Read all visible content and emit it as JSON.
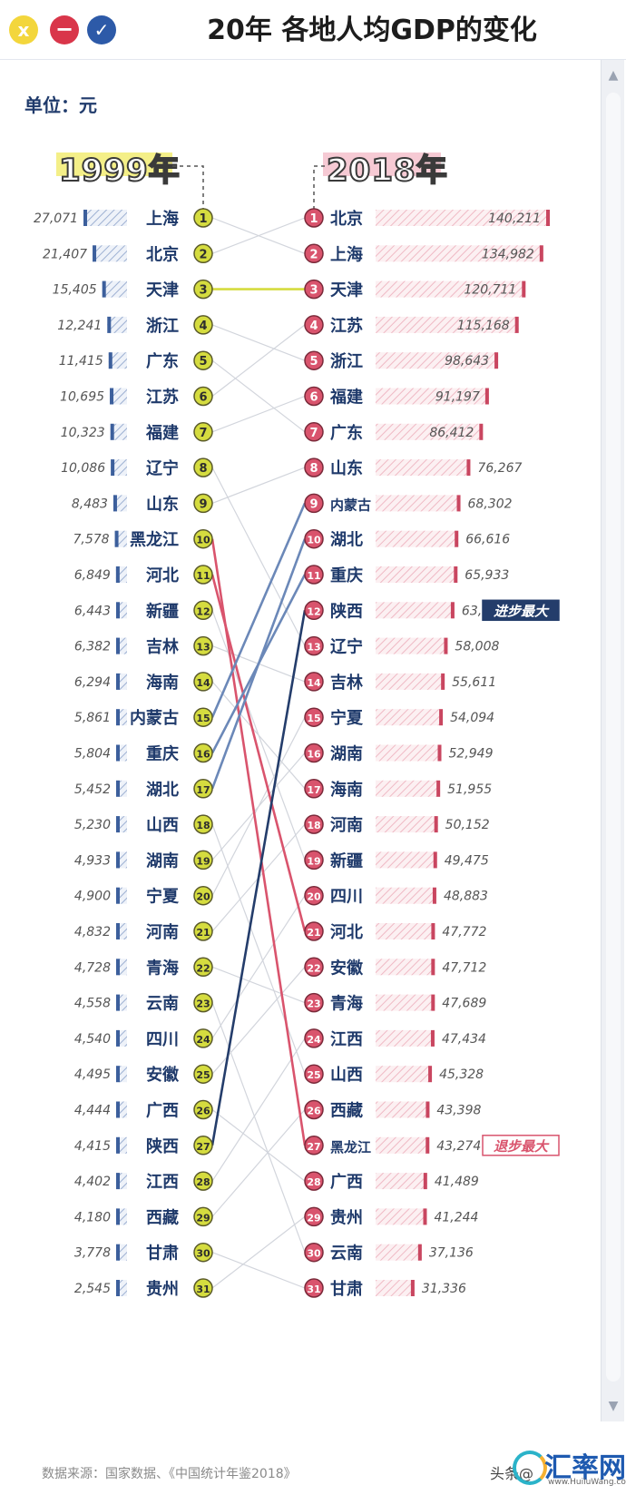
{
  "window": {
    "title": "20年 各地人均GDP的变化",
    "buttons": {
      "close_icon": "x",
      "minimize_icon": "−",
      "confirm_icon": "✓"
    }
  },
  "unit_label": "单位：元",
  "source_text": "数据来源：国家数据、《中国统计年鉴2018》",
  "watermark": {
    "toutiao": "头条@",
    "brand": "汇率网",
    "url": "www.HuiluWang.com"
  },
  "colors": {
    "yellow": "#d5dc3f",
    "pink": "#d9546d",
    "navy": "#243d6b",
    "steel": "#6b88b8",
    "connector_gray": "#d2d5dc"
  },
  "chart_data": {
    "type": "slope",
    "unit": "元",
    "left": {
      "year_label": "1999年",
      "items": [
        {
          "rank": "1",
          "region": "上海",
          "value": "27,071",
          "v": 27071
        },
        {
          "rank": "2",
          "region": "北京",
          "value": "21,407",
          "v": 21407
        },
        {
          "rank": "3",
          "region": "天津",
          "value": "15,405",
          "v": 15405
        },
        {
          "rank": "4",
          "region": "浙江",
          "value": "12,241",
          "v": 12241
        },
        {
          "rank": "5",
          "region": "广东",
          "value": "11,415",
          "v": 11415
        },
        {
          "rank": "6",
          "region": "江苏",
          "value": "10,695",
          "v": 10695
        },
        {
          "rank": "7",
          "region": "福建",
          "value": "10,323",
          "v": 10323
        },
        {
          "rank": "8",
          "region": "辽宁",
          "value": "10,086",
          "v": 10086
        },
        {
          "rank": "9",
          "region": "山东",
          "value": "8,483",
          "v": 8483
        },
        {
          "rank": "10",
          "region": "黑龙江",
          "value": "7,578",
          "v": 7578
        },
        {
          "rank": "11",
          "region": "河北",
          "value": "6,849",
          "v": 6849
        },
        {
          "rank": "12",
          "region": "新疆",
          "value": "6,443",
          "v": 6443
        },
        {
          "rank": "13",
          "region": "吉林",
          "value": "6,382",
          "v": 6382
        },
        {
          "rank": "14",
          "region": "海南",
          "value": "6,294",
          "v": 6294
        },
        {
          "rank": "15",
          "region": "内蒙古",
          "value": "5,861",
          "v": 5861
        },
        {
          "rank": "16",
          "region": "重庆",
          "value": "5,804",
          "v": 5804
        },
        {
          "rank": "17",
          "region": "湖北",
          "value": "5,452",
          "v": 5452
        },
        {
          "rank": "18",
          "region": "山西",
          "value": "5,230",
          "v": 5230
        },
        {
          "rank": "19",
          "region": "湖南",
          "value": "4,933",
          "v": 4933
        },
        {
          "rank": "20",
          "region": "宁夏",
          "value": "4,900",
          "v": 4900
        },
        {
          "rank": "21",
          "region": "河南",
          "value": "4,832",
          "v": 4832
        },
        {
          "rank": "22",
          "region": "青海",
          "value": "4,728",
          "v": 4728
        },
        {
          "rank": "23",
          "region": "云南",
          "value": "4,558",
          "v": 4558
        },
        {
          "rank": "24",
          "region": "四川",
          "value": "4,540",
          "v": 4540
        },
        {
          "rank": "25",
          "region": "安徽",
          "value": "4,495",
          "v": 4495
        },
        {
          "rank": "26",
          "region": "广西",
          "value": "4,444",
          "v": 4444
        },
        {
          "rank": "27",
          "region": "陕西",
          "value": "4,415",
          "v": 4415
        },
        {
          "rank": "28",
          "region": "江西",
          "value": "4,402",
          "v": 4402
        },
        {
          "rank": "29",
          "region": "西藏",
          "value": "4,180",
          "v": 4180
        },
        {
          "rank": "30",
          "region": "甘肃",
          "value": "3,778",
          "v": 3778
        },
        {
          "rank": "31",
          "region": "贵州",
          "value": "2,545",
          "v": 2545
        }
      ]
    },
    "right": {
      "year_label": "2018年",
      "items": [
        {
          "rank": "1",
          "region": "北京",
          "value": "140,211",
          "v": 140211
        },
        {
          "rank": "2",
          "region": "上海",
          "value": "134,982",
          "v": 134982
        },
        {
          "rank": "3",
          "region": "天津",
          "value": "120,711",
          "v": 120711
        },
        {
          "rank": "4",
          "region": "江苏",
          "value": "115,168",
          "v": 115168
        },
        {
          "rank": "5",
          "region": "浙江",
          "value": "98,643",
          "v": 98643
        },
        {
          "rank": "6",
          "region": "福建",
          "value": "91,197",
          "v": 91197
        },
        {
          "rank": "7",
          "region": "广东",
          "value": "86,412",
          "v": 86412
        },
        {
          "rank": "8",
          "region": "山东",
          "value": "76,267",
          "v": 76267
        },
        {
          "rank": "9",
          "region": "内蒙古",
          "value": "68,302",
          "v": 68302
        },
        {
          "rank": "10",
          "region": "湖北",
          "value": "66,616",
          "v": 66616
        },
        {
          "rank": "11",
          "region": "重庆",
          "value": "65,933",
          "v": 65933
        },
        {
          "rank": "12",
          "region": "陕西",
          "value": "63,477",
          "v": 63477
        },
        {
          "rank": "13",
          "region": "辽宁",
          "value": "58,008",
          "v": 58008
        },
        {
          "rank": "14",
          "region": "吉林",
          "value": "55,611",
          "v": 55611
        },
        {
          "rank": "15",
          "region": "宁夏",
          "value": "54,094",
          "v": 54094
        },
        {
          "rank": "16",
          "region": "湖南",
          "value": "52,949",
          "v": 52949
        },
        {
          "rank": "17",
          "region": "海南",
          "value": "51,955",
          "v": 51955
        },
        {
          "rank": "18",
          "region": "河南",
          "value": "50,152",
          "v": 50152
        },
        {
          "rank": "19",
          "region": "新疆",
          "value": "49,475",
          "v": 49475
        },
        {
          "rank": "20",
          "region": "四川",
          "value": "48,883",
          "v": 48883
        },
        {
          "rank": "21",
          "region": "河北",
          "value": "47,772",
          "v": 47772
        },
        {
          "rank": "22",
          "region": "安徽",
          "value": "47,712",
          "v": 47712
        },
        {
          "rank": "23",
          "region": "青海",
          "value": "47,689",
          "v": 47689
        },
        {
          "rank": "24",
          "region": "江西",
          "value": "47,434",
          "v": 47434
        },
        {
          "rank": "25",
          "region": "山西",
          "value": "45,328",
          "v": 45328
        },
        {
          "rank": "26",
          "region": "西藏",
          "value": "43,398",
          "v": 43398
        },
        {
          "rank": "27",
          "region": "黑龙江",
          "value": "43,274",
          "v": 43274
        },
        {
          "rank": "28",
          "region": "广西",
          "value": "41,489",
          "v": 41489
        },
        {
          "rank": "29",
          "region": "贵州",
          "value": "41,244",
          "v": 41244
        },
        {
          "rank": "30",
          "region": "云南",
          "value": "37,136",
          "v": 37136
        },
        {
          "rank": "31",
          "region": "甘肃",
          "value": "31,336",
          "v": 31336
        }
      ]
    },
    "callouts": [
      {
        "text": "进步最大",
        "region": "陕西",
        "side": "right",
        "style": "navy"
      },
      {
        "text": "退步最大",
        "region": "黑龙江",
        "side": "right",
        "style": "pink"
      }
    ],
    "highlighted_links": [
      {
        "region": "天津",
        "color": "yellow"
      },
      {
        "region": "黑龙江",
        "color": "pink"
      },
      {
        "region": "河北",
        "color": "pink"
      },
      {
        "region": "内蒙古",
        "color": "steel"
      },
      {
        "region": "重庆",
        "color": "steel"
      },
      {
        "region": "湖北",
        "color": "steel"
      },
      {
        "region": "陕西",
        "color": "navy"
      }
    ]
  }
}
